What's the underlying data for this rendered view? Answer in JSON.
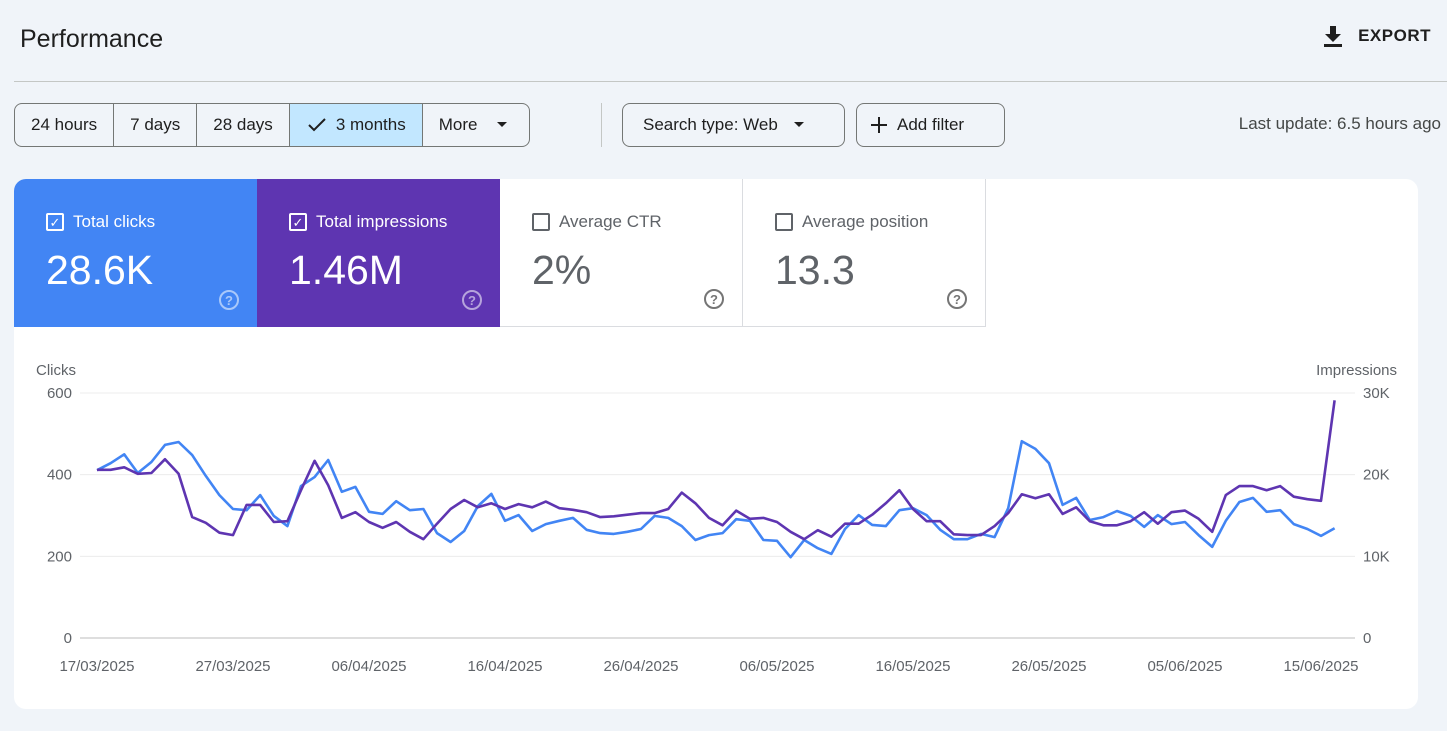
{
  "header": {
    "title": "Performance",
    "export_label": "EXPORT",
    "export_icon": "download-icon"
  },
  "filters": {
    "ranges": [
      {
        "label": "24 hours"
      },
      {
        "label": "7 days"
      },
      {
        "label": "28 days"
      },
      {
        "label": "3 months",
        "selected": true
      },
      {
        "label": "More"
      }
    ],
    "search_type": "Search type: Web",
    "add_filter": "Add filter",
    "last_update": "Last update: 6.5 hours ago"
  },
  "metrics": [
    {
      "label": "Total clicks",
      "value": "28.6K",
      "checked": true,
      "color": "#4285f4"
    },
    {
      "label": "Total impressions",
      "value": "1.46M",
      "checked": true,
      "color": "#5e35b1"
    },
    {
      "label": "Average CTR",
      "value": "2%",
      "checked": false
    },
    {
      "label": "Average position",
      "value": "13.3",
      "checked": false
    }
  ],
  "chart_data": {
    "type": "line",
    "left_axis_label": "Clicks",
    "right_axis_label": "Impressions",
    "left_ylim": [
      0,
      600
    ],
    "right_ylim": [
      0,
      30000
    ],
    "left_ticks": [
      "0",
      "200",
      "400",
      "600"
    ],
    "right_ticks": [
      "0",
      "10K",
      "20K",
      "30K"
    ],
    "x_start": "17/03/2025",
    "x_tick_labels": [
      "17/03/2025",
      "27/03/2025",
      "06/04/2025",
      "16/04/2025",
      "26/04/2025",
      "06/05/2025",
      "16/05/2025",
      "26/05/2025",
      "05/06/2025",
      "15/06/2025"
    ],
    "grid": true,
    "series": [
      {
        "name": "Clicks",
        "axis": "left",
        "color": "#4285f4",
        "values": [
          411,
          428,
          450,
          404,
          431,
          473,
          480,
          448,
          397,
          350,
          316,
          313,
          350,
          299,
          274,
          372,
          394,
          436,
          358,
          370,
          309,
          304,
          335,
          313,
          316,
          257,
          235,
          262,
          323,
          353,
          287,
          301,
          262,
          279,
          287,
          294,
          265,
          257,
          255,
          260,
          267,
          299,
          294,
          274,
          240,
          252,
          257,
          291,
          287,
          240,
          238,
          198,
          240,
          220,
          206,
          267,
          301,
          277,
          274,
          313,
          318,
          301,
          265,
          242,
          242,
          255,
          247,
          318,
          482,
          463,
          428,
          326,
          343,
          289,
          296,
          311,
          299,
          272,
          301,
          279,
          284,
          252,
          223,
          287,
          333,
          343,
          309,
          313,
          279,
          267,
          250,
          269
        ]
      },
      {
        "name": "Impressions",
        "axis": "right",
        "color": "#5e35b1",
        "values": [
          20600,
          20600,
          20900,
          20100,
          20200,
          21900,
          20100,
          14800,
          14100,
          12900,
          12600,
          16300,
          16300,
          14200,
          14300,
          18100,
          21700,
          18700,
          14700,
          15400,
          14200,
          13500,
          14200,
          13000,
          12100,
          14000,
          15800,
          16900,
          16000,
          16500,
          15800,
          16400,
          16000,
          16700,
          15900,
          15700,
          15400,
          14800,
          14900,
          15100,
          15300,
          15300,
          15800,
          17800,
          16500,
          14700,
          13800,
          15600,
          14600,
          14700,
          14200,
          13000,
          12100,
          13200,
          12400,
          14000,
          14000,
          15100,
          16500,
          18100,
          15800,
          14300,
          14300,
          12700,
          12600,
          12600,
          13700,
          15300,
          17600,
          17100,
          17600,
          15200,
          16000,
          14300,
          13800,
          13800,
          14300,
          15400,
          14000,
          15400,
          15600,
          14600,
          13000,
          17500,
          18600,
          18600,
          18100,
          18600,
          17300,
          17000,
          16800,
          29100
        ]
      }
    ]
  }
}
